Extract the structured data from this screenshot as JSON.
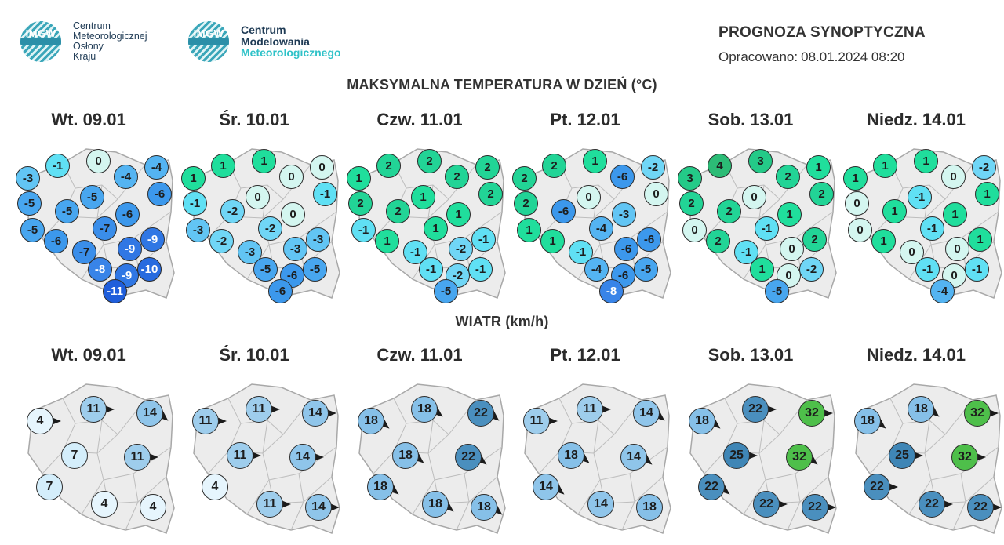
{
  "logos": {
    "imgw": "IMGW",
    "left_text": [
      "Centrum",
      "Meteorologicznej",
      "Osłony",
      "Kraju"
    ],
    "right_text": [
      "Centrum",
      "Modelowania",
      "Meteorologicznego"
    ]
  },
  "header": {
    "title": "PROGNOZA SYNOPTYCZNA",
    "date_label": "Opracowano:",
    "date_value": "08.01.2024 08:20"
  },
  "temperature_title": "MAKSYMALNA TEMPERATURA W DZIEŃ (°C)",
  "wind_title": "WIATR (km/h)",
  "days": [
    "Wt. 09.01",
    "Śr. 10.01",
    "Czw. 11.01",
    "Pt. 12.01",
    "Sob. 13.01",
    "Niedz. 14.01"
  ],
  "temperature": [
    [
      0,
      -1,
      -4,
      -3,
      -4,
      -6,
      -5,
      -5,
      -5,
      -6,
      -5,
      -7,
      -6,
      -9,
      -9,
      -7,
      -8,
      -9,
      -10,
      -11
    ],
    [
      1,
      1,
      0,
      1,
      0,
      -1,
      0,
      -1,
      -2,
      0,
      -3,
      -2,
      -2,
      -3,
      -3,
      -3,
      -5,
      -6,
      -5,
      -6
    ],
    [
      2,
      2,
      2,
      1,
      2,
      2,
      1,
      2,
      2,
      1,
      -1,
      1,
      1,
      -1,
      -2,
      -1,
      -1,
      -2,
      -1,
      -5
    ],
    [
      1,
      2,
      -2,
      2,
      -6,
      0,
      0,
      2,
      -6,
      -3,
      1,
      -4,
      1,
      -6,
      -6,
      -1,
      -4,
      -6,
      -5,
      -8
    ],
    [
      3,
      4,
      1,
      3,
      2,
      2,
      0,
      2,
      2,
      1,
      0,
      -1,
      2,
      2,
      0,
      -1,
      1,
      0,
      -2,
      -5
    ],
    [
      1,
      1,
      -2,
      1,
      0,
      1,
      -1,
      0,
      1,
      1,
      0,
      -1,
      1,
      1,
      0,
      0,
      -1,
      0,
      -1,
      -4
    ]
  ],
  "wind": [
    [
      {
        "v": 4,
        "dir": "E"
      },
      {
        "v": 11,
        "dir": "E"
      },
      {
        "v": 14,
        "dir": "SE"
      },
      {
        "v": 7,
        "dir": "none"
      },
      {
        "v": 11,
        "dir": "E"
      },
      {
        "v": 7,
        "dir": "none"
      },
      {
        "v": 4,
        "dir": "none"
      },
      {
        "v": 4,
        "dir": "none"
      }
    ],
    [
      {
        "v": 11,
        "dir": "E"
      },
      {
        "v": 11,
        "dir": "E"
      },
      {
        "v": 14,
        "dir": "E"
      },
      {
        "v": 11,
        "dir": "E"
      },
      {
        "v": 14,
        "dir": "E"
      },
      {
        "v": 4,
        "dir": "none"
      },
      {
        "v": 11,
        "dir": "E"
      },
      {
        "v": 14,
        "dir": "E"
      }
    ],
    [
      {
        "v": 18,
        "dir": "SE"
      },
      {
        "v": 18,
        "dir": "SE"
      },
      {
        "v": 22,
        "dir": "SE"
      },
      {
        "v": 18,
        "dir": "SE"
      },
      {
        "v": 22,
        "dir": "SE"
      },
      {
        "v": 18,
        "dir": "SE"
      },
      {
        "v": 18,
        "dir": "SE"
      },
      {
        "v": 18,
        "dir": "SE"
      }
    ],
    [
      {
        "v": 11,
        "dir": "E"
      },
      {
        "v": 11,
        "dir": "E"
      },
      {
        "v": 14,
        "dir": "SE"
      },
      {
        "v": 18,
        "dir": "SE"
      },
      {
        "v": 14,
        "dir": "SE"
      },
      {
        "v": 14,
        "dir": "SE"
      },
      {
        "v": 14,
        "dir": "none"
      },
      {
        "v": 18,
        "dir": "none"
      }
    ],
    [
      {
        "v": 18,
        "dir": "SE"
      },
      {
        "v": 22,
        "dir": "E"
      },
      {
        "v": 32,
        "dir": "E"
      },
      {
        "v": 25,
        "dir": "E"
      },
      {
        "v": 32,
        "dir": "SE"
      },
      {
        "v": 22,
        "dir": "SE"
      },
      {
        "v": 22,
        "dir": "E"
      },
      {
        "v": 22,
        "dir": "E"
      }
    ],
    [
      {
        "v": 18,
        "dir": "SE"
      },
      {
        "v": 18,
        "dir": "SE"
      },
      {
        "v": 32,
        "dir": "E"
      },
      {
        "v": 25,
        "dir": "E"
      },
      {
        "v": 32,
        "dir": "E"
      },
      {
        "v": 22,
        "dir": "E"
      },
      {
        "v": 22,
        "dir": "E"
      },
      {
        "v": 22,
        "dir": "E"
      }
    ]
  ]
}
